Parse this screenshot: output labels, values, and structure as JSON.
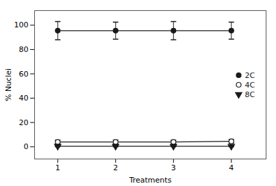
{
  "chart_data": {
    "type": "line",
    "xlabel": "Treatments",
    "ylabel": "% Nuclei",
    "x": [
      1,
      2,
      3,
      4
    ],
    "series": [
      {
        "name": "2C",
        "color": "#1a1a1a",
        "marker": "circle",
        "values": [
          95.5,
          95.5,
          95.5,
          95.5
        ],
        "yerr": [
          7.5,
          7.0,
          7.5,
          7.0
        ]
      },
      {
        "name": "4C",
        "color": "#1a1a1a",
        "marker": "open_circle",
        "values": [
          4.0,
          4.0,
          4.0,
          4.5
        ],
        "yerr": [
          1.5,
          1.5,
          1.5,
          1.5
        ]
      },
      {
        "name": "8C",
        "color": "#1a1a1a",
        "marker": "triangle_down",
        "values": [
          0.5,
          0.5,
          0.5,
          0.5
        ],
        "yerr": [
          0.4,
          0.4,
          0.4,
          0.4
        ]
      }
    ],
    "xlim": [
      0.6,
      4.6
    ],
    "xticks": [
      1,
      2,
      3,
      4
    ],
    "ylim": [
      -10,
      112
    ],
    "yticks": [
      0,
      20,
      40,
      60,
      80,
      100
    ],
    "legend": "center right",
    "grid": false
  }
}
